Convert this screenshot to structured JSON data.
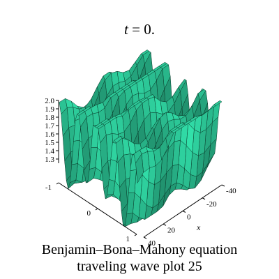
{
  "chart_data": {
    "type": "surface3d",
    "title": "t = 0.",
    "title_var": "t",
    "title_rest": " = 0.",
    "zlabel": "",
    "xlabel": "x",
    "z_ticks": [
      "2.0",
      "1.9",
      "1.8",
      "1.7",
      "1.6",
      "1.5",
      "1.4",
      "1.3"
    ],
    "zlim": [
      1.25,
      2.0
    ],
    "y_ticks": [
      "-1",
      "0",
      "1"
    ],
    "x_ticks": [
      "-40",
      "-20",
      "0",
      "20",
      "40"
    ],
    "xlim": [
      -40,
      40
    ],
    "ylim": [
      -1,
      1
    ],
    "surface_color": "#2fd3a0",
    "edge_color": "#0a3a2a"
  },
  "caption": {
    "line1": "Benjamin–Bona–Mahony  equation",
    "line2": "traveling wave plot 25"
  }
}
